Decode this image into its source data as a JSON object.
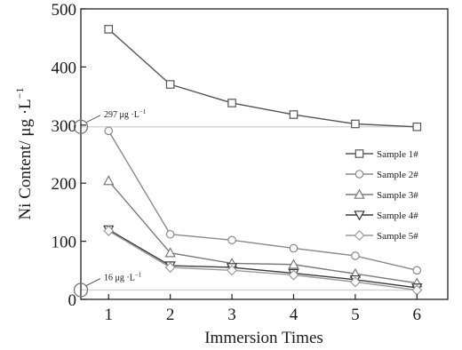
{
  "chart_data": {
    "type": "line",
    "title": "",
    "xlabel": "Immersion Times",
    "ylabel": "Ni Content/ μg ·L",
    "ylabel_superscript": "−1",
    "xlim": [
      0.55,
      6.5
    ],
    "ylim": [
      0,
      500
    ],
    "xticks": [
      1,
      2,
      3,
      4,
      5,
      6
    ],
    "yticks": [
      0,
      100,
      200,
      300,
      400,
      500
    ],
    "x": [
      1,
      2,
      3,
      4,
      5,
      6
    ],
    "grid": false,
    "legend_position": "right",
    "series": [
      {
        "name": "Sample 1#",
        "marker": "square",
        "values": [
          465,
          370,
          338,
          318,
          302,
          297
        ]
      },
      {
        "name": "Sample 2#",
        "marker": "circle",
        "values": [
          290,
          112,
          102,
          88,
          75,
          50
        ]
      },
      {
        "name": "Sample 3#",
        "marker": "triangle-up",
        "values": [
          204,
          80,
          62,
          60,
          44,
          28
        ]
      },
      {
        "name": "Sample 4#",
        "marker": "triangle-down",
        "values": [
          120,
          58,
          55,
          45,
          34,
          20
        ]
      },
      {
        "name": "Sample 5#",
        "marker": "diamond",
        "values": [
          118,
          55,
          50,
          42,
          30,
          16
        ]
      }
    ],
    "reference_lines": [
      {
        "value": 297,
        "label": "297",
        "unit": "μg ·L",
        "unit_superscript": "−1"
      },
      {
        "value": 16,
        "label": "16",
        "unit": "μg ·L",
        "unit_superscript": "−1"
      }
    ]
  }
}
